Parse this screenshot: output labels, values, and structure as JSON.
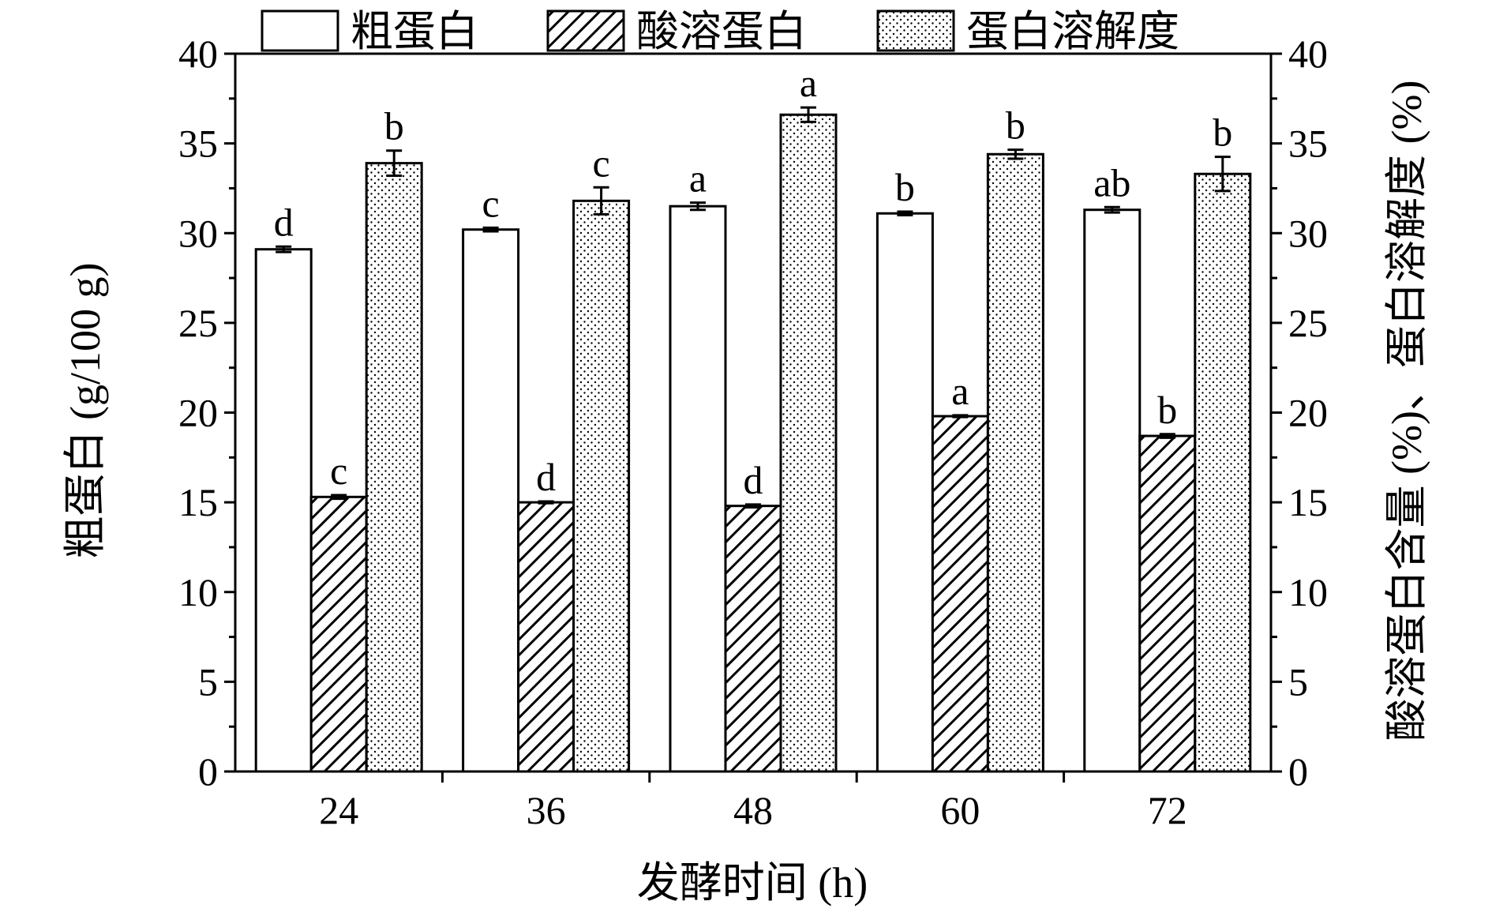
{
  "chart_data": {
    "type": "bar",
    "categories": [
      "24",
      "36",
      "48",
      "60",
      "72"
    ],
    "xlabel": "发酵时间 (h)",
    "ylabel_left": "粗蛋白 (g/100 g)",
    "ylabel_right": "酸溶蛋白含量 (%)、蛋白溶解度 (%)",
    "ylim": [
      0,
      40
    ],
    "yticks": [
      0,
      5,
      10,
      15,
      20,
      25,
      30,
      35,
      40
    ],
    "legend_position": "top",
    "series": [
      {
        "name": "粗蛋白",
        "axis": "left",
        "pattern": "white",
        "values": [
          29.1,
          30.2,
          31.5,
          31.1,
          31.3
        ],
        "errors": [
          0.15,
          0.1,
          0.2,
          0.1,
          0.15
        ],
        "labels": [
          "d",
          "c",
          "a",
          "b",
          "ab"
        ]
      },
      {
        "name": "酸溶蛋白",
        "axis": "right",
        "pattern": "hatch",
        "values": [
          15.3,
          15.0,
          14.8,
          19.8,
          18.7
        ],
        "errors": [
          0.1,
          0.05,
          0.08,
          0.05,
          0.1
        ],
        "labels": [
          "c",
          "d",
          "d",
          "a",
          "b"
        ]
      },
      {
        "name": "蛋白溶解度",
        "axis": "right",
        "pattern": "dots",
        "values": [
          33.9,
          31.8,
          36.6,
          34.4,
          33.3
        ],
        "errors": [
          0.7,
          0.75,
          0.4,
          0.25,
          0.95
        ],
        "labels": [
          "b",
          "c",
          "a",
          "b",
          "b"
        ]
      }
    ]
  }
}
